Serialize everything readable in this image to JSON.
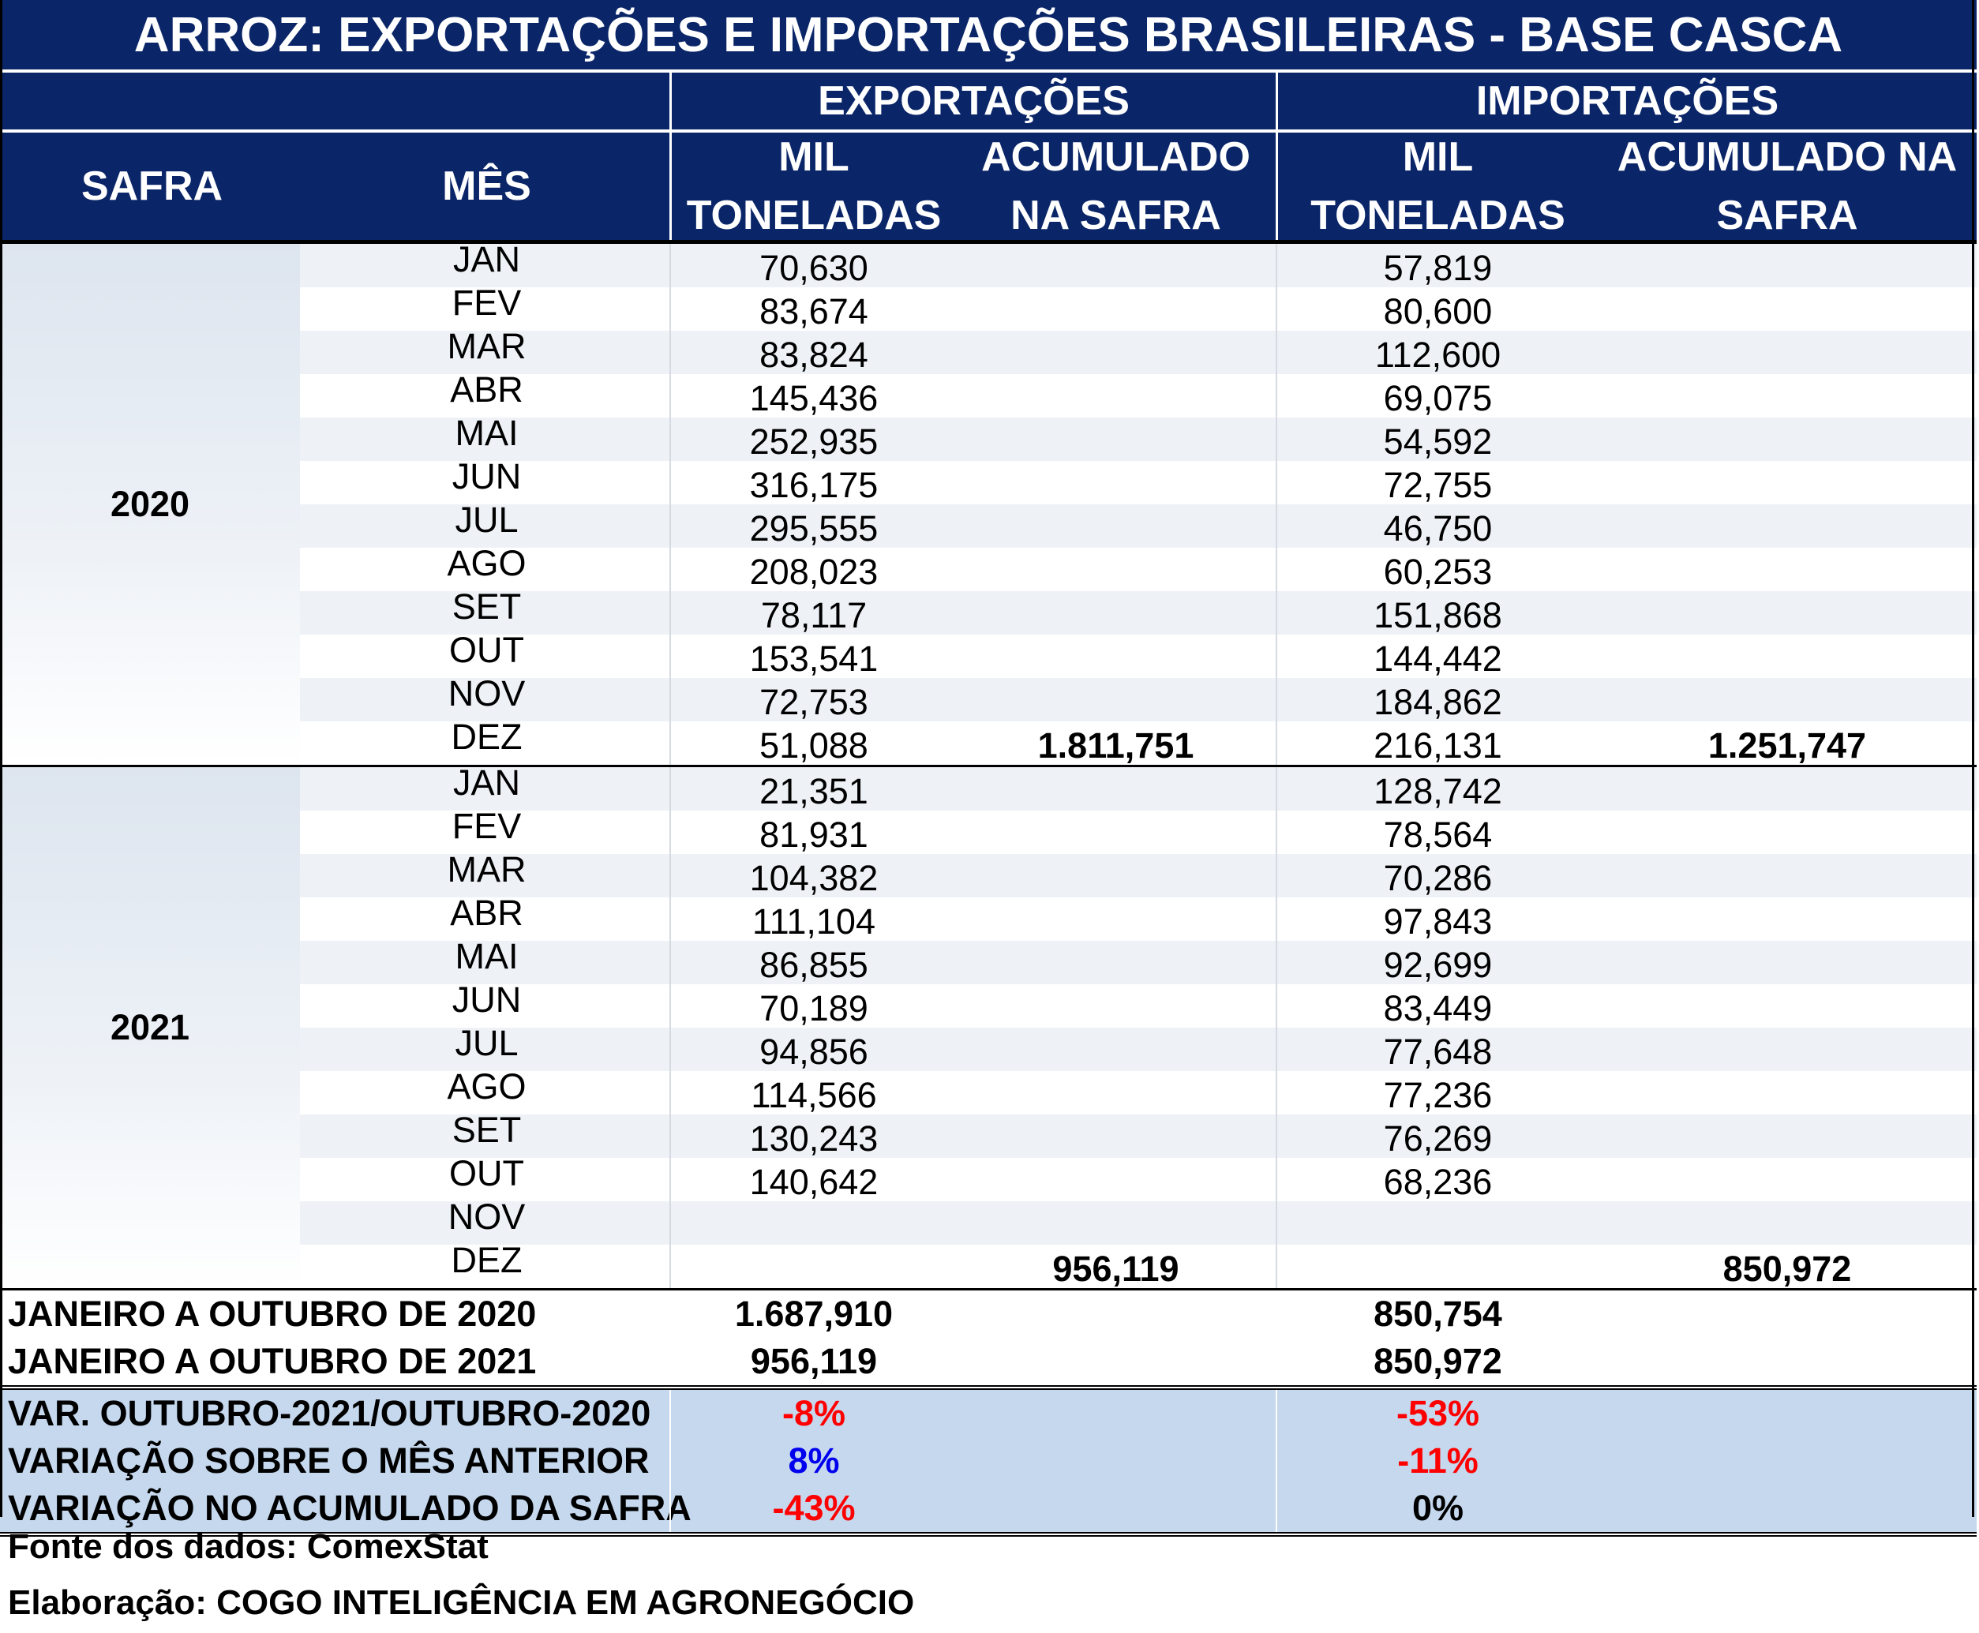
{
  "title": "ARROZ: EXPORTAÇÕES E IMPORTAÇÕES BRASILEIRAS - BASE CASCA",
  "header": {
    "exportacoes": "EXPORTAÇÕES",
    "importacoes": "IMPORTAÇÕES",
    "safra": "SAFRA",
    "mes": "MÊS",
    "exp_mil_1": "MIL",
    "exp_mil_2": "TONELADAS",
    "exp_acum_1": "ACUMULADO",
    "exp_acum_2": "NA SAFRA",
    "imp_mil_1": "MIL",
    "imp_mil_2": "TONELADAS",
    "imp_acum_1": "ACUMULADO NA",
    "imp_acum_2": "SAFRA"
  },
  "safras": [
    {
      "year": "2020",
      "rows": [
        {
          "mes": "JAN",
          "exp": "70,630",
          "exp_acum": "",
          "imp": "57,819",
          "imp_acum": ""
        },
        {
          "mes": "FEV",
          "exp": "83,674",
          "exp_acum": "",
          "imp": "80,600",
          "imp_acum": ""
        },
        {
          "mes": "MAR",
          "exp": "83,824",
          "exp_acum": "",
          "imp": "112,600",
          "imp_acum": ""
        },
        {
          "mes": "ABR",
          "exp": "145,436",
          "exp_acum": "",
          "imp": "69,075",
          "imp_acum": ""
        },
        {
          "mes": "MAI",
          "exp": "252,935",
          "exp_acum": "",
          "imp": "54,592",
          "imp_acum": ""
        },
        {
          "mes": "JUN",
          "exp": "316,175",
          "exp_acum": "",
          "imp": "72,755",
          "imp_acum": ""
        },
        {
          "mes": "JUL",
          "exp": "295,555",
          "exp_acum": "",
          "imp": "46,750",
          "imp_acum": ""
        },
        {
          "mes": "AGO",
          "exp": "208,023",
          "exp_acum": "",
          "imp": "60,253",
          "imp_acum": ""
        },
        {
          "mes": "SET",
          "exp": "78,117",
          "exp_acum": "",
          "imp": "151,868",
          "imp_acum": ""
        },
        {
          "mes": "OUT",
          "exp": "153,541",
          "exp_acum": "",
          "imp": "144,442",
          "imp_acum": ""
        },
        {
          "mes": "NOV",
          "exp": "72,753",
          "exp_acum": "",
          "imp": "184,862",
          "imp_acum": ""
        },
        {
          "mes": "DEZ",
          "exp": "51,088",
          "exp_acum": "1.811,751",
          "imp": "216,131",
          "imp_acum": "1.251,747"
        }
      ]
    },
    {
      "year": "2021",
      "rows": [
        {
          "mes": "JAN",
          "exp": "21,351",
          "exp_acum": "",
          "imp": "128,742",
          "imp_acum": ""
        },
        {
          "mes": "FEV",
          "exp": "81,931",
          "exp_acum": "",
          "imp": "78,564",
          "imp_acum": ""
        },
        {
          "mes": "MAR",
          "exp": "104,382",
          "exp_acum": "",
          "imp": "70,286",
          "imp_acum": ""
        },
        {
          "mes": "ABR",
          "exp": "111,104",
          "exp_acum": "",
          "imp": "97,843",
          "imp_acum": ""
        },
        {
          "mes": "MAI",
          "exp": "86,855",
          "exp_acum": "",
          "imp": "92,699",
          "imp_acum": ""
        },
        {
          "mes": "JUN",
          "exp": "70,189",
          "exp_acum": "",
          "imp": "83,449",
          "imp_acum": ""
        },
        {
          "mes": "JUL",
          "exp": "94,856",
          "exp_acum": "",
          "imp": "77,648",
          "imp_acum": ""
        },
        {
          "mes": "AGO",
          "exp": "114,566",
          "exp_acum": "",
          "imp": "77,236",
          "imp_acum": ""
        },
        {
          "mes": "SET",
          "exp": "130,243",
          "exp_acum": "",
          "imp": "76,269",
          "imp_acum": ""
        },
        {
          "mes": "OUT",
          "exp": "140,642",
          "exp_acum": "",
          "imp": "68,236",
          "imp_acum": ""
        },
        {
          "mes": "NOV",
          "exp": "",
          "exp_acum": "",
          "imp": "",
          "imp_acum": ""
        },
        {
          "mes": "DEZ",
          "exp": "",
          "exp_acum": "956,119",
          "imp": "",
          "imp_acum": "850,972"
        }
      ]
    }
  ],
  "summary": [
    {
      "label": "JANEIRO A OUTUBRO DE 2020",
      "exp": "1.687,910",
      "imp": "850,754"
    },
    {
      "label": "JANEIRO A OUTUBRO DE 2021",
      "exp": "956,119",
      "imp": "850,972"
    }
  ],
  "variations": [
    {
      "label": "VAR. OUTUBRO-2021/OUTUBRO-2020",
      "exp": "-8%",
      "exp_color": "#ff0000",
      "imp": "-53%",
      "imp_color": "#ff0000"
    },
    {
      "label": "VARIAÇÃO SOBRE O MÊS ANTERIOR",
      "exp": "8%",
      "exp_color": "#0000ee",
      "imp": "-11%",
      "imp_color": "#ff0000"
    },
    {
      "label": "VARIAÇÃO NO ACUMULADO DA SAFRA",
      "exp": "-43%",
      "exp_color": "#ff0000",
      "imp": "0%",
      "imp_color": "#000000"
    }
  ],
  "footer": {
    "fonte": "Fonte dos dados: ComexStat",
    "elaboracao": "Elaboração: COGO INTELIGÊNCIA EM AGRONEGÓCIO"
  },
  "colors": {
    "header_bg": "#0b2668",
    "stripe": "#eef2f7",
    "variation_bg": "#c5d8ee"
  }
}
